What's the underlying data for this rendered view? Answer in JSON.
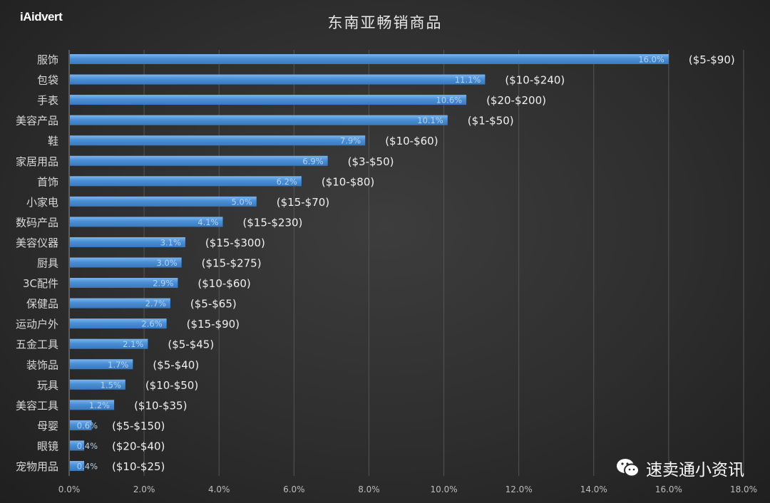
{
  "logo": "iAidvert",
  "watermark": {
    "icon": "wechat-icon",
    "text": "速卖通小资讯"
  },
  "colors": {
    "bar": "#4a8fd6",
    "bar_top": "#7db5ec",
    "value_label": "#b3d3f2",
    "price_label": "#f0f0f0",
    "category_label": "#d8d8d8",
    "grid": "#555555"
  },
  "chart_data": {
    "type": "bar",
    "orientation": "horizontal",
    "title": "东南亚畅销商品",
    "categories": [
      "服饰",
      "包袋",
      "手表",
      "美容产品",
      "鞋",
      "家居用品",
      "首饰",
      "小家电",
      "数码产品",
      "美容仪器",
      "厨具",
      "3C配件",
      "保健品",
      "运动户外",
      "五金工具",
      "装饰品",
      "玩具",
      "美容工具",
      "母婴",
      "眼镜",
      "宠物用品"
    ],
    "values": [
      16.0,
      11.1,
      10.6,
      10.1,
      7.9,
      6.9,
      6.2,
      5.0,
      4.1,
      3.1,
      3.0,
      2.9,
      2.7,
      2.6,
      2.1,
      1.7,
      1.5,
      1.2,
      0.6,
      0.4,
      0.4
    ],
    "value_labels": [
      "16.0%",
      "11.1%",
      "10.6%",
      "10.1%",
      "7.9%",
      "6.9%",
      "6.2%",
      "5.0%",
      "4.1%",
      "3.1%",
      "3.0%",
      "2.9%",
      "2.7%",
      "2.6%",
      "2.1%",
      "1.7%",
      "1.5%",
      "1.2%",
      "0.6%",
      "0.4%",
      "0.4%"
    ],
    "price_ranges": [
      "($5-$90)",
      "($10-$240)",
      "($20-$200)",
      "($1-$50)",
      "($10-$60)",
      "($3-$50)",
      "($10-$80)",
      "($15-$70)",
      "($15-$230)",
      "($15-$300)",
      "($15-$275)",
      "($10-$60)",
      "($5-$65)",
      "($15-$90)",
      "($5-$45)",
      "($5-$40)",
      "($10-$50)",
      "($10-$35)",
      "($5-$150)",
      "($20-$40)",
      "($10-$25)"
    ],
    "xlim": [
      0,
      18
    ],
    "xticks": [
      "0.0%",
      "2.0%",
      "4.0%",
      "6.0%",
      "8.0%",
      "10.0%",
      "12.0%",
      "14.0%",
      "16.0%",
      "18.0%"
    ],
    "xlabel": "",
    "ylabel": "",
    "grid": "vertical"
  }
}
